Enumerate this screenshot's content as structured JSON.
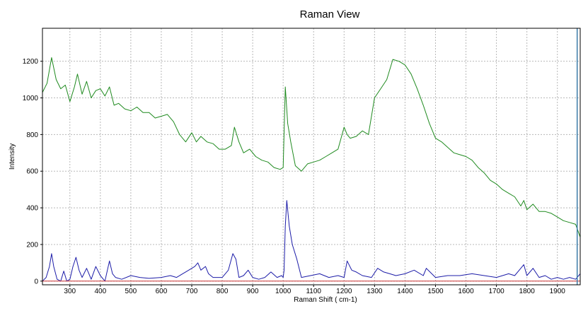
{
  "chart_data": {
    "type": "line",
    "title": "Raman View",
    "xlabel": "Raman Shift ( cm-1)",
    "ylabel": "Intensity",
    "xlim": [
      210,
      1975
    ],
    "ylim": [
      -20,
      1380
    ],
    "x_ticks": [
      300,
      400,
      500,
      600,
      700,
      800,
      900,
      1000,
      1100,
      1200,
      1300,
      1400,
      1500,
      1600,
      1700,
      1800,
      1900
    ],
    "y_ticks": [
      0,
      200,
      400,
      600,
      800,
      1000,
      1200
    ],
    "grid": true,
    "zero_line_color": "#cc3333",
    "cursor_x": 1965,
    "cursor_color": "#3a7ba8",
    "series": [
      {
        "color": "#1f8a1f",
        "x": [
          210,
          225,
          240,
          255,
          270,
          285,
          300,
          315,
          325,
          340,
          355,
          370,
          385,
          400,
          415,
          430,
          445,
          460,
          480,
          500,
          520,
          540,
          560,
          580,
          600,
          620,
          640,
          660,
          680,
          700,
          715,
          730,
          750,
          770,
          790,
          810,
          830,
          840,
          855,
          870,
          890,
          910,
          930,
          950,
          970,
          990,
          1000,
          1007,
          1015,
          1025,
          1040,
          1060,
          1080,
          1100,
          1120,
          1140,
          1160,
          1180,
          1200,
          1210,
          1220,
          1240,
          1260,
          1280,
          1300,
          1320,
          1340,
          1360,
          1380,
          1400,
          1420,
          1440,
          1460,
          1480,
          1500,
          1520,
          1540,
          1560,
          1580,
          1600,
          1620,
          1640,
          1660,
          1680,
          1700,
          1720,
          1740,
          1760,
          1780,
          1790,
          1800,
          1820,
          1840,
          1860,
          1880,
          1900,
          1920,
          1940,
          1960,
          1975
        ],
        "y": [
          1030,
          1080,
          1220,
          1100,
          1050,
          1070,
          980,
          1060,
          1130,
          1020,
          1090,
          1000,
          1040,
          1050,
          1010,
          1060,
          960,
          970,
          940,
          930,
          950,
          920,
          920,
          890,
          900,
          910,
          870,
          800,
          760,
          810,
          760,
          790,
          760,
          750,
          720,
          720,
          740,
          840,
          760,
          700,
          720,
          680,
          660,
          650,
          620,
          610,
          620,
          1060,
          860,
          760,
          630,
          600,
          640,
          650,
          660,
          680,
          700,
          720,
          840,
          800,
          780,
          790,
          820,
          800,
          1000,
          1050,
          1100,
          1210,
          1200,
          1180,
          1130,
          1050,
          960,
          860,
          780,
          760,
          730,
          700,
          690,
          680,
          660,
          620,
          590,
          550,
          530,
          500,
          480,
          460,
          410,
          440,
          390,
          420,
          380,
          380,
          370,
          350,
          330,
          320,
          310,
          240
        ]
      },
      {
        "color": "#1c1ca8",
        "x": [
          210,
          222,
          233,
          240,
          247,
          258,
          270,
          280,
          290,
          300,
          310,
          320,
          330,
          340,
          355,
          370,
          385,
          400,
          415,
          430,
          440,
          450,
          470,
          500,
          530,
          560,
          600,
          630,
          650,
          670,
          690,
          710,
          720,
          730,
          745,
          755,
          770,
          800,
          820,
          835,
          845,
          855,
          870,
          885,
          900,
          920,
          940,
          960,
          980,
          995,
          1000,
          1003,
          1007,
          1012,
          1020,
          1030,
          1045,
          1060,
          1090,
          1120,
          1150,
          1180,
          1200,
          1210,
          1225,
          1240,
          1260,
          1290,
          1310,
          1330,
          1350,
          1370,
          1400,
          1430,
          1460,
          1470,
          1500,
          1540,
          1580,
          1620,
          1660,
          1700,
          1740,
          1760,
          1780,
          1790,
          1800,
          1820,
          1840,
          1860,
          1880,
          1900,
          1920,
          1940,
          1960,
          1975
        ],
        "y": [
          0,
          20,
          80,
          150,
          80,
          10,
          0,
          55,
          0,
          10,
          80,
          130,
          60,
          20,
          70,
          10,
          80,
          30,
          0,
          110,
          40,
          20,
          10,
          30,
          20,
          15,
          20,
          30,
          20,
          40,
          60,
          80,
          100,
          60,
          80,
          40,
          20,
          20,
          60,
          150,
          120,
          20,
          30,
          60,
          20,
          10,
          20,
          50,
          20,
          30,
          20,
          60,
          300,
          440,
          300,
          200,
          120,
          20,
          30,
          40,
          20,
          30,
          20,
          110,
          60,
          50,
          30,
          20,
          70,
          50,
          40,
          30,
          40,
          60,
          30,
          70,
          20,
          30,
          30,
          40,
          30,
          20,
          40,
          30,
          70,
          90,
          30,
          70,
          20,
          30,
          10,
          20,
          10,
          20,
          10,
          40
        ]
      },
      {
        "color": "#cc3333",
        "x": [
          210,
          1975
        ],
        "y": [
          0,
          0
        ]
      }
    ]
  }
}
